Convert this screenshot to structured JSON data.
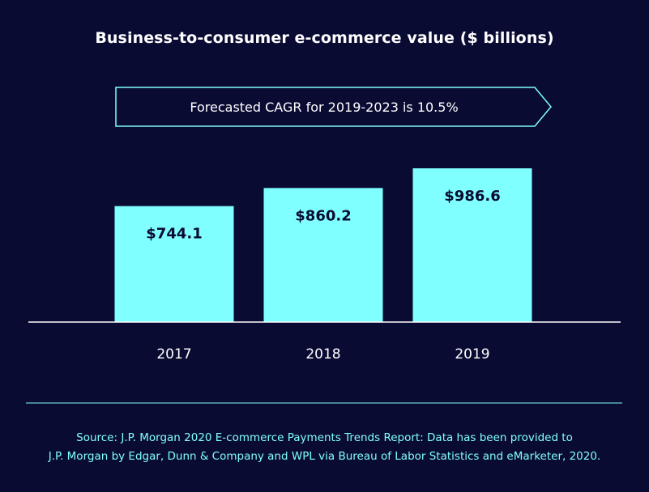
{
  "chart_data": {
    "type": "bar",
    "title": "Business-to-consumer e-commerce value ($ billions)",
    "annotation": "Forecasted CAGR for 2019-2023 is 10.5%",
    "categories": [
      "2017",
      "2018",
      "2019"
    ],
    "values": [
      744.1,
      860.2,
      986.6
    ],
    "value_labels": [
      "$744.1",
      "$860.2",
      "$986.6"
    ],
    "ylim": [
      0,
      1000
    ],
    "grid": false,
    "bar_color": "#7fffff",
    "background_color": "#0a0b33"
  },
  "source": {
    "line1": "Source: J.P. Morgan 2020 E-commerce Payments Trends Report: Data has been provided to",
    "line2": "J.P. Morgan by Edgar, Dunn & Company and WPL via Bureau of Labor Statistics and eMarketer, 2020."
  }
}
